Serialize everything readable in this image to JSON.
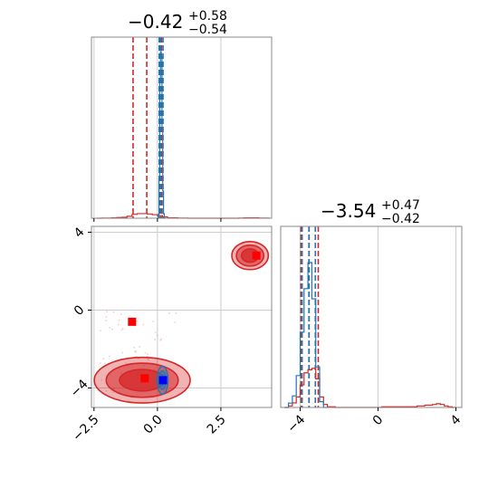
{
  "colors": {
    "red": "#d62728",
    "red_marker": "#ff0000",
    "blue": "#1f77b4",
    "blue_marker": "#0000ff",
    "grid": "#cccccc",
    "frame": "#888888"
  },
  "chart_data": [
    {
      "type": "histogram",
      "panel": "top-left",
      "title_main": "−0.42",
      "title_sup": "+0.58",
      "title_sub": "−0.54",
      "xlim": [
        -2.6,
        4.5
      ],
      "xticks": [
        -2.5,
        0.0,
        2.5
      ],
      "grid": true,
      "red_quantile_lines": [
        -0.96,
        -0.42,
        0.16
      ],
      "blue_quantile_lines": [
        0.07,
        0.12,
        0.22
      ],
      "red_hist": {
        "bins": [
          -2.4,
          -2.2,
          -2.0,
          -1.8,
          -1.6,
          -1.4,
          -1.2,
          -1.0,
          -0.8,
          -0.6,
          -0.4,
          -0.2,
          0.0,
          0.2,
          0.4,
          0.6,
          0.8,
          1.0,
          1.2,
          1.4,
          1.6,
          1.8,
          2.0,
          2.2,
          2.4,
          2.6,
          2.8,
          3.0,
          3.2,
          3.4,
          3.6,
          3.8,
          4.0,
          4.2,
          4.4
        ],
        "counts": [
          0,
          1,
          1,
          2,
          4,
          6,
          12,
          24,
          28,
          28,
          26,
          22,
          16,
          8,
          3,
          3,
          1,
          1,
          0,
          0,
          0,
          0,
          0,
          0,
          0,
          0,
          0,
          0,
          1,
          2,
          2,
          2,
          1,
          1
        ]
      },
      "blue_hist": {
        "bins": [
          0.0,
          0.03,
          0.06,
          0.09,
          0.12,
          0.15,
          0.18,
          0.21,
          0.24,
          0.27,
          0.3
        ],
        "counts": [
          0,
          4,
          45,
          150,
          184,
          178,
          100,
          30,
          5,
          0
        ]
      }
    },
    {
      "type": "contour",
      "panel": "bottom-left",
      "xlim": [
        -2.6,
        4.5
      ],
      "ylim": [
        -5.0,
        4.3
      ],
      "xticks": [
        "−2.5",
        "0.0",
        "2.5"
      ],
      "yticks": [
        "−4",
        "0",
        "4"
      ],
      "grid": true,
      "red_modes": [
        {
          "x": -0.6,
          "y": -3.6,
          "sx": 1.05,
          "sy": 0.65
        },
        {
          "x": 3.65,
          "y": 2.8,
          "sx": 0.4,
          "sy": 0.4
        }
      ],
      "blue_mode": {
        "x": 0.2,
        "y": -3.6,
        "sx": 0.12,
        "sy": 0.4
      },
      "red_square_markers": [
        [
          -1.0,
          -0.6
        ],
        [
          -0.5,
          -3.5
        ],
        [
          3.9,
          2.8
        ]
      ],
      "blue_square_marker": [
        0.22,
        -3.6
      ]
    },
    {
      "type": "histogram",
      "panel": "bottom-right",
      "title_main": "−3.54",
      "title_sup": "+0.47",
      "title_sub": "−0.42",
      "xlim": [
        -5.0,
        4.3
      ],
      "xticks": [
        "−4",
        "0",
        "4"
      ],
      "grid": true,
      "red_quantile_lines": [
        -3.96,
        -3.54,
        -3.07
      ],
      "blue_quantile_lines": [
        -3.9,
        -3.55,
        -3.22
      ],
      "red_hist": {
        "bins": [
          -4.8,
          -4.6,
          -4.4,
          -4.2,
          -4.0,
          -3.8,
          -3.6,
          -3.4,
          -3.2,
          -3.0,
          -2.8,
          -2.6,
          -2.4,
          -2.2,
          -2.0,
          -1.8,
          -1.6,
          -1.4,
          -1.2,
          -1.0,
          -0.8,
          -0.6,
          -0.4,
          -0.2,
          0.0,
          0.2,
          0.4,
          0.6,
          0.8,
          1.0,
          1.2,
          1.4,
          1.6,
          1.8,
          2.0,
          2.2,
          2.4,
          2.6,
          2.8,
          3.0,
          3.2,
          3.4,
          3.6,
          3.8,
          4.0
        ],
        "counts": [
          0,
          2,
          6,
          14,
          30,
          46,
          50,
          52,
          38,
          14,
          4,
          1,
          1,
          0,
          0,
          0,
          0,
          0,
          0,
          0,
          0,
          0,
          0,
          0,
          0,
          1,
          1,
          1,
          1,
          1,
          1,
          1,
          1,
          1,
          2,
          2,
          3,
          3,
          4,
          5,
          4,
          2,
          1,
          0
        ]
      },
      "blue_hist": {
        "bins": [
          -4.8,
          -4.6,
          -4.4,
          -4.2,
          -4.0,
          -3.8,
          -3.6,
          -3.4,
          -3.2,
          -3.0,
          -2.8,
          -2.6
        ],
        "counts": [
          0,
          3,
          8,
          22,
          52,
          82,
          100,
          75,
          28,
          4,
          0
        ]
      }
    }
  ]
}
